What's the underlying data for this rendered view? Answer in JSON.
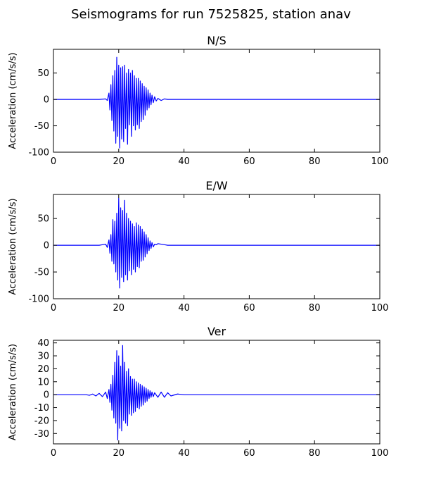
{
  "figure": {
    "title": "Seismograms for run 7525825, station anav"
  },
  "chart_data": [
    {
      "type": "line",
      "title": "N/S",
      "xlabel": "",
      "ylabel": "Acceleration (cm/s/s)",
      "xlim": [
        0,
        100
      ],
      "ylim": [
        -100,
        95
      ],
      "xticks": [
        0,
        20,
        40,
        60,
        80,
        100
      ],
      "yticks": [
        -100,
        -50,
        0,
        50
      ],
      "color": "#0000ff",
      "series": [
        {
          "x": [
            0,
            5,
            10,
            14,
            16,
            16.5,
            17,
            17.3,
            17.6,
            17.9,
            18.2,
            18.5,
            18.8,
            19.1,
            19.4,
            19.7,
            20.0,
            20.3,
            20.6,
            20.9,
            21.2,
            21.5,
            21.8,
            22.1,
            22.4,
            22.7,
            23.0,
            23.3,
            23.6,
            23.9,
            24.2,
            24.5,
            24.8,
            25.1,
            25.4,
            25.7,
            26.0,
            26.3,
            26.6,
            26.9,
            27.2,
            27.5,
            27.8,
            28.1,
            28.4,
            28.7,
            29.0,
            29.3,
            29.6,
            29.9,
            30.2,
            30.6,
            31.0,
            31.5,
            32,
            33,
            34,
            35,
            37,
            40,
            50,
            60,
            70,
            80,
            90,
            100
          ],
          "y": [
            0,
            0,
            0,
            0,
            1,
            -2,
            12,
            -20,
            28,
            -40,
            45,
            -60,
            55,
            -83,
            80,
            -70,
            65,
            -92,
            60,
            -75,
            62,
            -80,
            65,
            -55,
            50,
            -85,
            57,
            -48,
            50,
            -70,
            55,
            -50,
            45,
            -58,
            40,
            -48,
            40,
            -55,
            35,
            -42,
            30,
            -38,
            25,
            -30,
            22,
            -20,
            18,
            -16,
            12,
            -10,
            8,
            -6,
            5,
            -3,
            2,
            -2,
            1,
            0,
            0,
            0,
            0,
            0,
            0,
            0,
            0,
            0
          ]
        }
      ]
    },
    {
      "type": "line",
      "title": "E/W",
      "xlabel": "",
      "ylabel": "Acceleration (cm/s/s)",
      "xlim": [
        0,
        100
      ],
      "ylim": [
        -100,
        95
      ],
      "xticks": [
        0,
        20,
        40,
        60,
        80,
        100
      ],
      "yticks": [
        -100,
        -50,
        0,
        50
      ],
      "color": "#0000ff",
      "series": [
        {
          "x": [
            0,
            5,
            10,
            14,
            16,
            16.5,
            17,
            17.3,
            17.6,
            17.9,
            18.2,
            18.5,
            18.8,
            19.1,
            19.4,
            19.7,
            20.0,
            20.3,
            20.6,
            20.9,
            21.2,
            21.5,
            21.8,
            22.1,
            22.4,
            22.7,
            23.0,
            23.3,
            23.6,
            23.9,
            24.2,
            24.5,
            24.8,
            25.1,
            25.4,
            25.7,
            26.0,
            26.3,
            26.6,
            26.9,
            27.2,
            27.5,
            27.8,
            28.1,
            28.4,
            28.7,
            29.0,
            29.3,
            29.6,
            29.9,
            30.2,
            30.6,
            31.0,
            31.5,
            32,
            33,
            34,
            35,
            37,
            40,
            50,
            60,
            70,
            80,
            90,
            100
          ],
          "y": [
            0,
            0,
            0,
            0,
            2,
            -4,
            10,
            -15,
            20,
            -30,
            48,
            -35,
            45,
            -50,
            60,
            -65,
            88,
            -80,
            70,
            -60,
            65,
            -68,
            84,
            -55,
            60,
            -65,
            50,
            -48,
            45,
            -55,
            40,
            -45,
            35,
            -50,
            42,
            -40,
            38,
            -42,
            35,
            -30,
            30,
            -28,
            25,
            -22,
            20,
            -16,
            14,
            -10,
            8,
            -6,
            5,
            -3,
            2,
            1,
            3,
            2,
            1,
            0,
            0,
            0,
            0,
            0,
            0,
            0,
            0,
            0
          ]
        }
      ]
    },
    {
      "type": "line",
      "title": "Ver",
      "xlabel": "",
      "ylabel": "Acceleration (cm/s/s)",
      "xlim": [
        0,
        100
      ],
      "ylim": [
        -38,
        42
      ],
      "xticks": [
        0,
        20,
        40,
        60,
        80,
        100
      ],
      "yticks": [
        -30,
        -20,
        -10,
        0,
        10,
        20,
        30,
        40
      ],
      "color": "#0000ff",
      "series": [
        {
          "x": [
            0,
            5,
            10,
            11,
            12,
            13,
            14,
            15,
            16,
            16.5,
            17,
            17.3,
            17.6,
            17.9,
            18.2,
            18.5,
            18.8,
            19.1,
            19.4,
            19.7,
            20.0,
            20.3,
            20.6,
            20.9,
            21.2,
            21.5,
            21.8,
            22.1,
            22.4,
            22.7,
            23.0,
            23.3,
            23.6,
            23.9,
            24.2,
            24.5,
            24.8,
            25.1,
            25.4,
            25.7,
            26.0,
            26.3,
            26.6,
            26.9,
            27.2,
            27.5,
            27.8,
            28.1,
            28.4,
            28.7,
            29.0,
            29.3,
            29.6,
            29.9,
            30.2,
            30.6,
            31,
            32,
            33,
            34,
            35,
            36,
            38,
            40,
            50,
            60,
            70,
            80,
            90,
            100
          ],
          "y": [
            0,
            0,
            0,
            -0.5,
            0.5,
            -1,
            1,
            -1.5,
            2,
            -3,
            4,
            -6,
            8,
            -12,
            15,
            -18,
            25,
            -22,
            34,
            -35,
            30,
            -26,
            22,
            -28,
            38,
            -20,
            25,
            -22,
            18,
            -24,
            20,
            -15,
            14,
            -16,
            12,
            -14,
            12,
            -13,
            10,
            -10,
            9,
            -11,
            8,
            -9,
            7,
            -8,
            6,
            -6,
            5,
            -5,
            4,
            -3,
            3,
            -2,
            2,
            -1.5,
            1.5,
            -2,
            2,
            -2,
            1.5,
            -1,
            0.5,
            0,
            0,
            0,
            0,
            0,
            0,
            0
          ]
        }
      ]
    }
  ]
}
